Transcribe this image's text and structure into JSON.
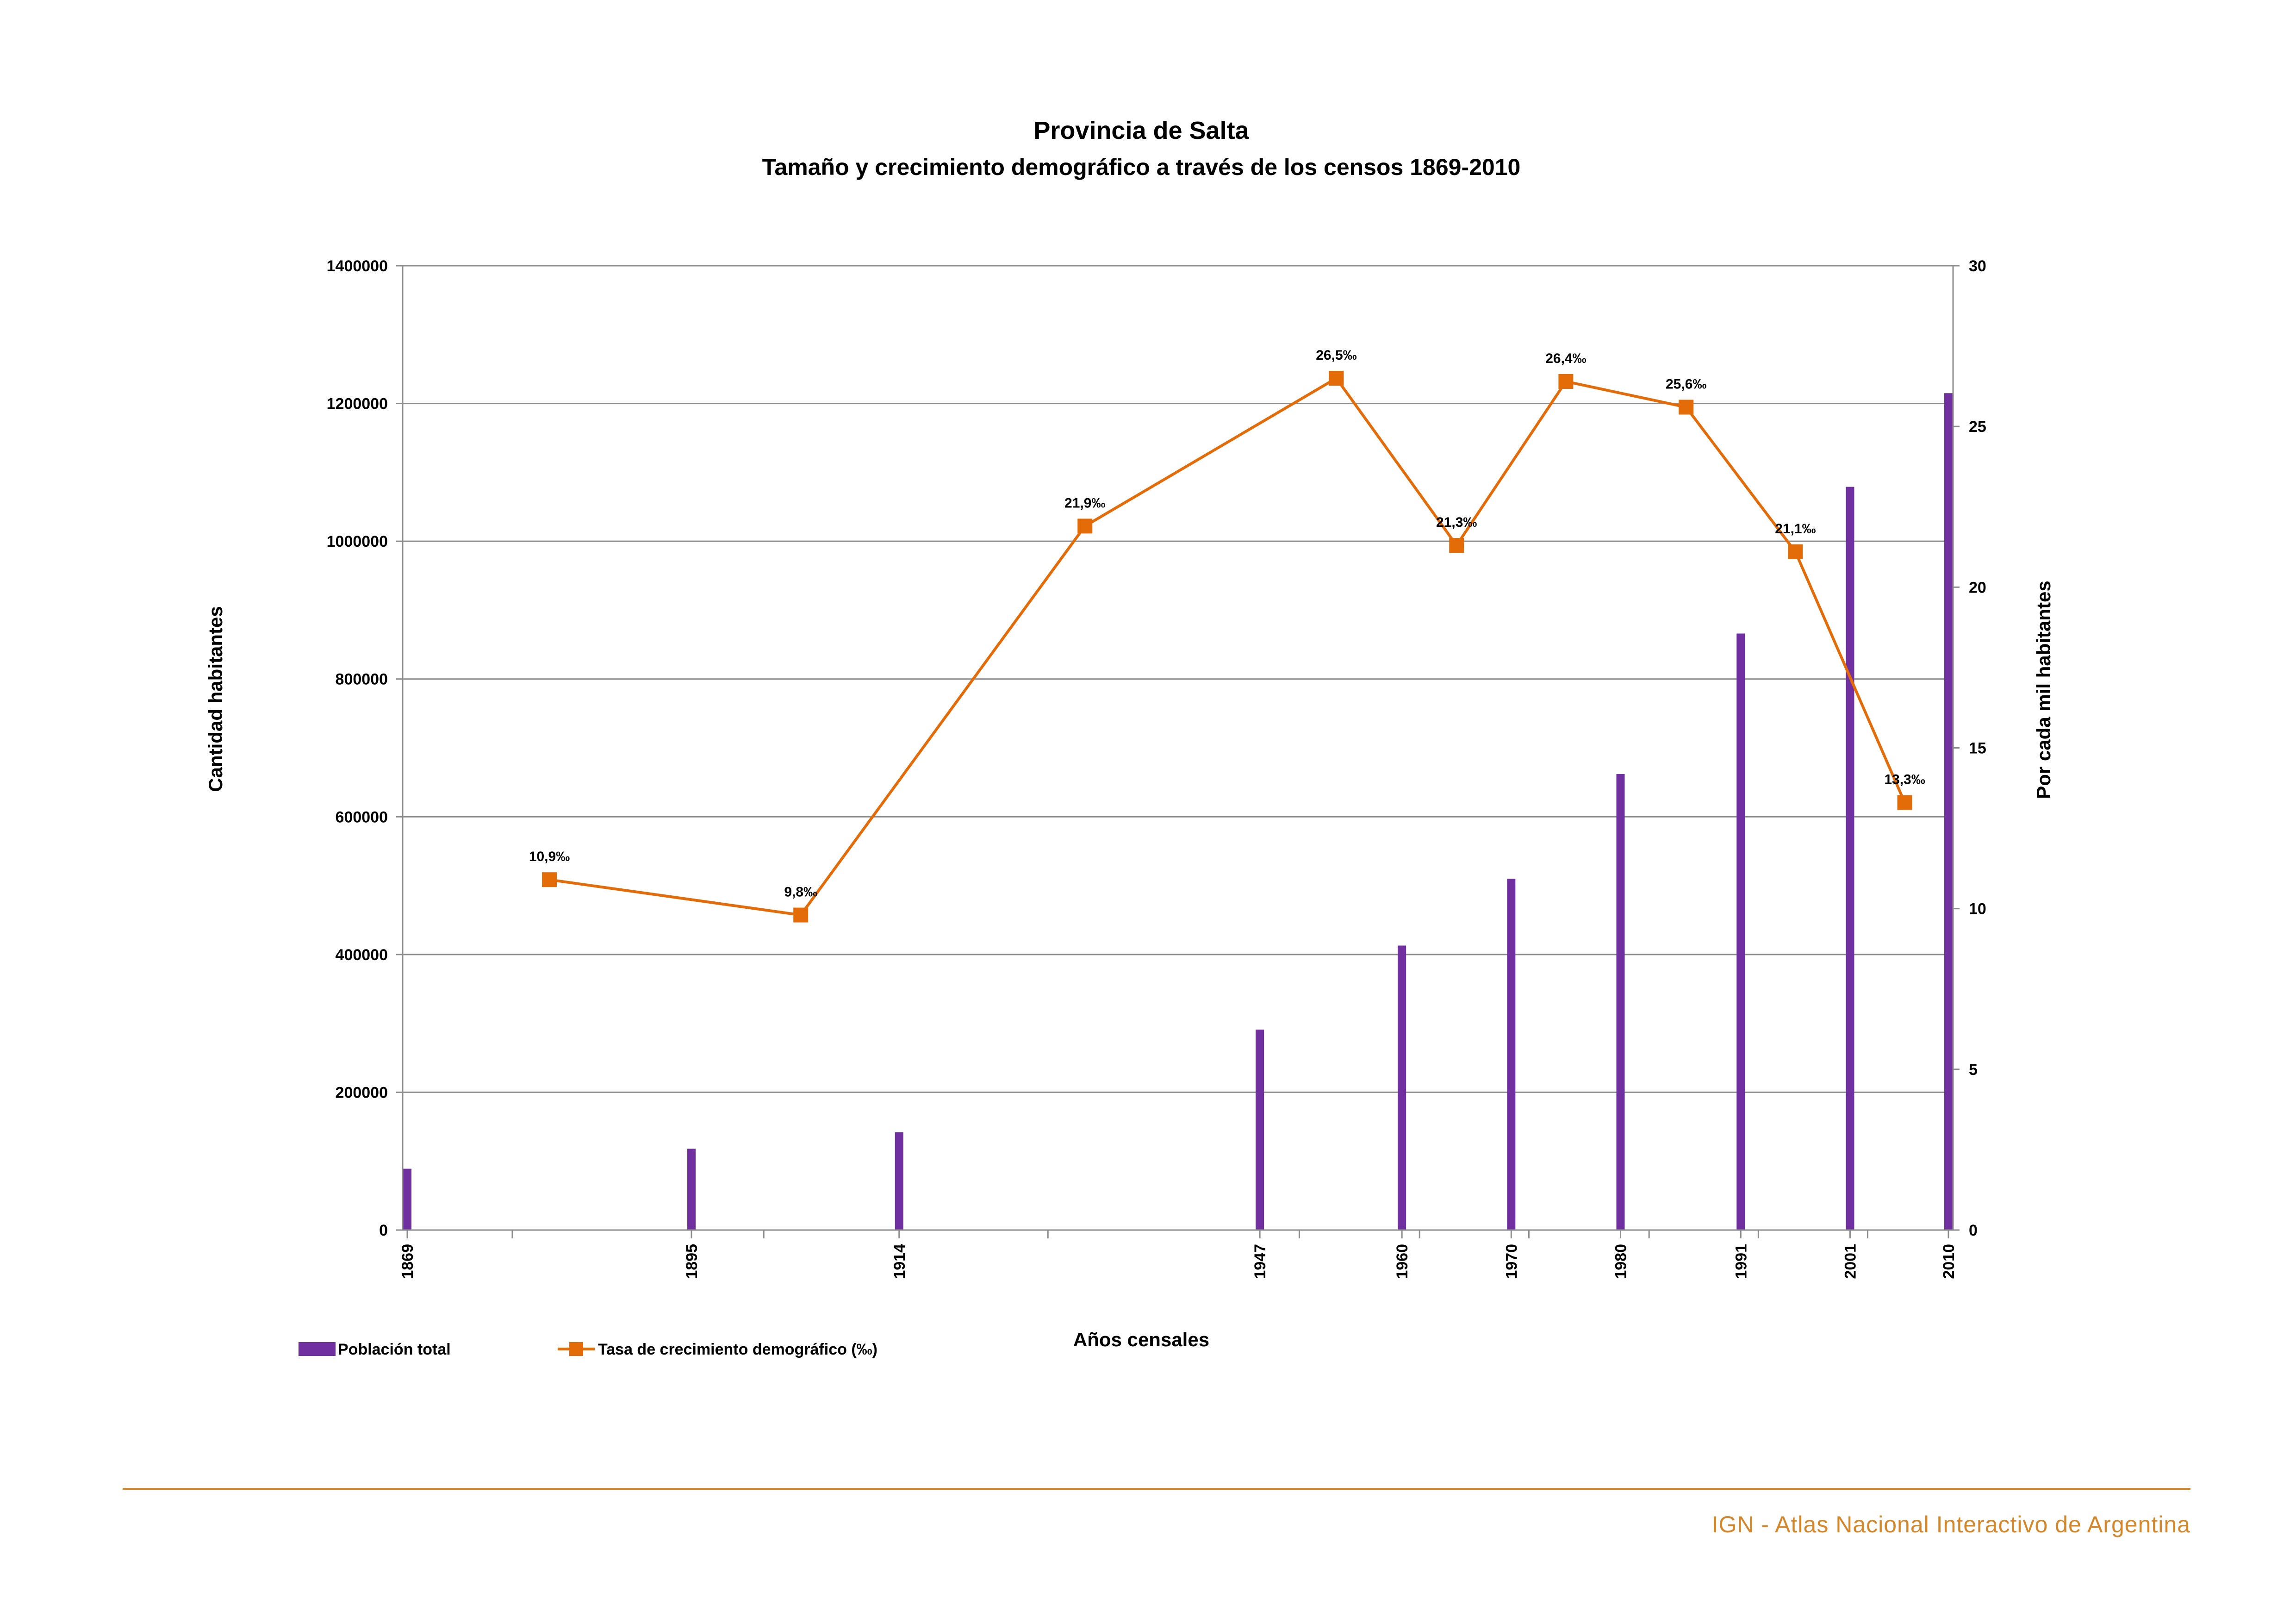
{
  "chart_data": {
    "type": "bar",
    "title": "Provincia de Salta",
    "subtitle": "Tamaño y crecimiento demográfico a través de los censos 1869-2010",
    "xlabel": "Años censales",
    "ylabel": "Cantidad habitantes",
    "y2label": "Por cada mil habitantes",
    "ylim": [
      0,
      1400000
    ],
    "y2lim": [
      0,
      30
    ],
    "y_ticks": [
      "0",
      "200000",
      "400000",
      "600000",
      "800000",
      "1000000",
      "1200000",
      "1400000"
    ],
    "y2_ticks": [
      "0",
      "5",
      "10",
      "15",
      "20",
      "25",
      "30"
    ],
    "x_range": [
      1869,
      2010
    ],
    "grid": true,
    "legend_position": "bottom-left",
    "series": [
      {
        "name": "Población total",
        "type": "bar",
        "color": "#7030a0",
        "axis": "left",
        "x": [
          1869,
          1895,
          1914,
          1947,
          1960,
          1970,
          1980,
          1991,
          2001,
          2010
        ],
        "labels": [
          "1869",
          "1895",
          "1914",
          "1947",
          "1960",
          "1970",
          "1980",
          "1991",
          "2001",
          "2010"
        ],
        "values": [
          89000,
          118000,
          142000,
          291000,
          413000,
          510000,
          662000,
          866000,
          1079000,
          1215000
        ]
      },
      {
        "name": "Tasa de crecimiento demográfico (‰)",
        "type": "line",
        "color": "#e36c09",
        "axis": "right",
        "x": [
          1882,
          1905,
          1931,
          1954,
          1965,
          1975,
          1986,
          1996,
          2006
        ],
        "values": [
          10.9,
          9.8,
          21.9,
          26.5,
          21.3,
          26.4,
          25.6,
          21.1,
          13.3
        ],
        "labels": [
          "10,9‰",
          "9,8‰",
          "21,9‰",
          "26,5‰",
          "21,3‰",
          "26,4‰",
          "25,6‰",
          "21,1‰",
          "13,3‰"
        ]
      }
    ]
  },
  "footer": {
    "text": "IGN - Atlas Nacional Interactivo de Argentina",
    "color": "#d4862a"
  }
}
